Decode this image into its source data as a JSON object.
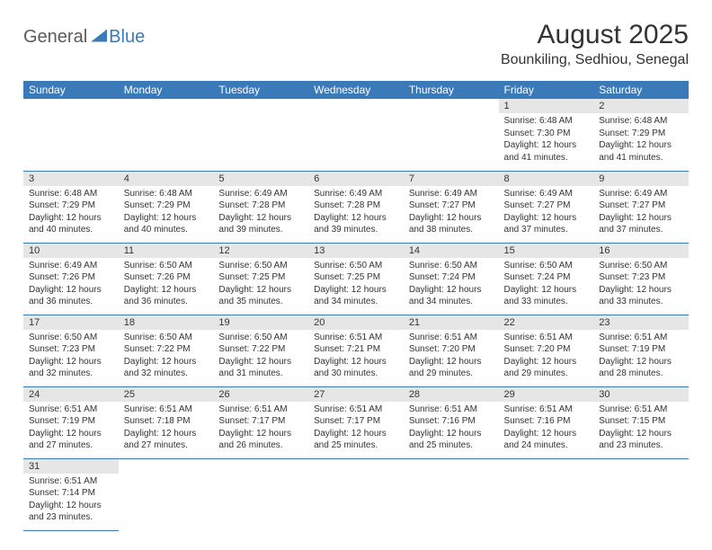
{
  "logo": {
    "part1": "General",
    "part2": "Blue"
  },
  "title": "August 2025",
  "location": "Bounkiling, Sedhiou, Senegal",
  "colors": {
    "header_bg": "#3a7ab8",
    "header_text": "#ffffff",
    "daynum_bg": "#e6e6e6",
    "border": "#3a7ab8",
    "text": "#333333",
    "logo_gray": "#5a5a5a",
    "logo_blue": "#3a7ab8",
    "page_bg": "#ffffff"
  },
  "dow": [
    "Sunday",
    "Monday",
    "Tuesday",
    "Wednesday",
    "Thursday",
    "Friday",
    "Saturday"
  ],
  "label_sunrise": "Sunrise: ",
  "label_sunset": "Sunset: ",
  "label_daylight_a": "Daylight: ",
  "label_daylight_b": " hours and ",
  "label_daylight_c": " minutes.",
  "weeks": [
    [
      null,
      null,
      null,
      null,
      null,
      {
        "n": "1",
        "sr": "6:48 AM",
        "ss": "7:30 PM",
        "dh": "12",
        "dm": "41"
      },
      {
        "n": "2",
        "sr": "6:48 AM",
        "ss": "7:29 PM",
        "dh": "12",
        "dm": "41"
      }
    ],
    [
      {
        "n": "3",
        "sr": "6:48 AM",
        "ss": "7:29 PM",
        "dh": "12",
        "dm": "40"
      },
      {
        "n": "4",
        "sr": "6:48 AM",
        "ss": "7:29 PM",
        "dh": "12",
        "dm": "40"
      },
      {
        "n": "5",
        "sr": "6:49 AM",
        "ss": "7:28 PM",
        "dh": "12",
        "dm": "39"
      },
      {
        "n": "6",
        "sr": "6:49 AM",
        "ss": "7:28 PM",
        "dh": "12",
        "dm": "39"
      },
      {
        "n": "7",
        "sr": "6:49 AM",
        "ss": "7:27 PM",
        "dh": "12",
        "dm": "38"
      },
      {
        "n": "8",
        "sr": "6:49 AM",
        "ss": "7:27 PM",
        "dh": "12",
        "dm": "37"
      },
      {
        "n": "9",
        "sr": "6:49 AM",
        "ss": "7:27 PM",
        "dh": "12",
        "dm": "37"
      }
    ],
    [
      {
        "n": "10",
        "sr": "6:49 AM",
        "ss": "7:26 PM",
        "dh": "12",
        "dm": "36"
      },
      {
        "n": "11",
        "sr": "6:50 AM",
        "ss": "7:26 PM",
        "dh": "12",
        "dm": "36"
      },
      {
        "n": "12",
        "sr": "6:50 AM",
        "ss": "7:25 PM",
        "dh": "12",
        "dm": "35"
      },
      {
        "n": "13",
        "sr": "6:50 AM",
        "ss": "7:25 PM",
        "dh": "12",
        "dm": "34"
      },
      {
        "n": "14",
        "sr": "6:50 AM",
        "ss": "7:24 PM",
        "dh": "12",
        "dm": "34"
      },
      {
        "n": "15",
        "sr": "6:50 AM",
        "ss": "7:24 PM",
        "dh": "12",
        "dm": "33"
      },
      {
        "n": "16",
        "sr": "6:50 AM",
        "ss": "7:23 PM",
        "dh": "12",
        "dm": "33"
      }
    ],
    [
      {
        "n": "17",
        "sr": "6:50 AM",
        "ss": "7:23 PM",
        "dh": "12",
        "dm": "32"
      },
      {
        "n": "18",
        "sr": "6:50 AM",
        "ss": "7:22 PM",
        "dh": "12",
        "dm": "32"
      },
      {
        "n": "19",
        "sr": "6:50 AM",
        "ss": "7:22 PM",
        "dh": "12",
        "dm": "31"
      },
      {
        "n": "20",
        "sr": "6:51 AM",
        "ss": "7:21 PM",
        "dh": "12",
        "dm": "30"
      },
      {
        "n": "21",
        "sr": "6:51 AM",
        "ss": "7:20 PM",
        "dh": "12",
        "dm": "29"
      },
      {
        "n": "22",
        "sr": "6:51 AM",
        "ss": "7:20 PM",
        "dh": "12",
        "dm": "29"
      },
      {
        "n": "23",
        "sr": "6:51 AM",
        "ss": "7:19 PM",
        "dh": "12",
        "dm": "28"
      }
    ],
    [
      {
        "n": "24",
        "sr": "6:51 AM",
        "ss": "7:19 PM",
        "dh": "12",
        "dm": "27"
      },
      {
        "n": "25",
        "sr": "6:51 AM",
        "ss": "7:18 PM",
        "dh": "12",
        "dm": "27"
      },
      {
        "n": "26",
        "sr": "6:51 AM",
        "ss": "7:17 PM",
        "dh": "12",
        "dm": "26"
      },
      {
        "n": "27",
        "sr": "6:51 AM",
        "ss": "7:17 PM",
        "dh": "12",
        "dm": "25"
      },
      {
        "n": "28",
        "sr": "6:51 AM",
        "ss": "7:16 PM",
        "dh": "12",
        "dm": "25"
      },
      {
        "n": "29",
        "sr": "6:51 AM",
        "ss": "7:16 PM",
        "dh": "12",
        "dm": "24"
      },
      {
        "n": "30",
        "sr": "6:51 AM",
        "ss": "7:15 PM",
        "dh": "12",
        "dm": "23"
      }
    ],
    [
      {
        "n": "31",
        "sr": "6:51 AM",
        "ss": "7:14 PM",
        "dh": "12",
        "dm": "23"
      },
      null,
      null,
      null,
      null,
      null,
      null
    ]
  ]
}
